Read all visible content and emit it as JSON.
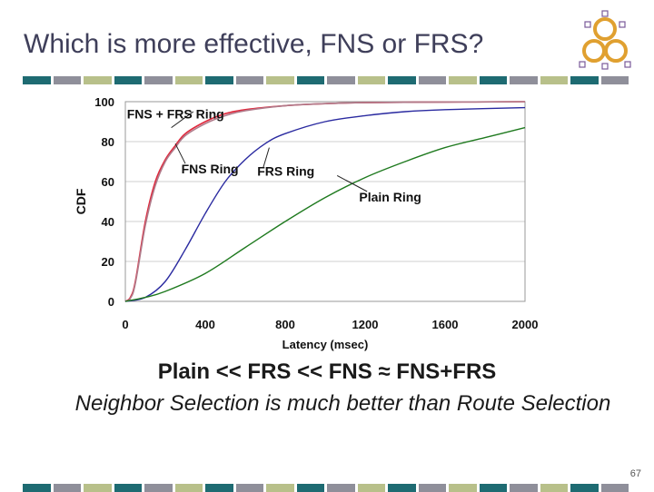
{
  "slide": {
    "title": "Which is more effective, FNS or FRS?",
    "caption_line1": "Plain << FRS << FNS ≈ FNS+FRS",
    "caption_line2": "Neighbor Selection is much better than Route Selection",
    "page_number": "67"
  },
  "decor": {
    "stripe_colors": [
      "#1e6b72",
      "#8f8f9a",
      "#b8c08a",
      "#1e6b72",
      "#8f8f9a",
      "#b8c08a",
      "#1e6b72",
      "#8f8f9a",
      "#b8c08a",
      "#1e6b72",
      "#8f8f9a",
      "#b8c08a",
      "#1e6b72",
      "#8f8f9a",
      "#b8c08a",
      "#1e6b72",
      "#8f8f9a",
      "#b8c08a",
      "#1e6b72",
      "#8f8f9a"
    ],
    "logo_icon": "network-rings-icon"
  },
  "chart_data": {
    "type": "line",
    "title": "",
    "xlabel": "Latency (msec)",
    "ylabel": "CDF",
    "xlim": [
      0,
      2000
    ],
    "ylim": [
      0,
      100
    ],
    "xticks": [
      "0",
      "400",
      "800",
      "1200",
      "1600",
      "2000"
    ],
    "yticks": [
      "0",
      "20",
      "40",
      "60",
      "80",
      "100"
    ],
    "grid": "horizontal",
    "series": [
      {
        "name": "FNS + FRS Ring",
        "color": "#e0283c",
        "x": [
          0,
          25,
          50,
          100,
          150,
          200,
          250,
          300,
          400,
          500,
          600,
          800,
          1000,
          1200,
          1600,
          2000
        ],
        "y": [
          0,
          2,
          10,
          40,
          60,
          71,
          78,
          84,
          90,
          94,
          96,
          98,
          99,
          99.5,
          99.8,
          100
        ]
      },
      {
        "name": "FNS Ring",
        "color": "#b07a8a",
        "x": [
          0,
          25,
          50,
          100,
          150,
          200,
          250,
          300,
          400,
          500,
          600,
          800,
          1000,
          1200,
          1600,
          2000
        ],
        "y": [
          0,
          1.5,
          9,
          38,
          58,
          70,
          77,
          83,
          89,
          93,
          95.5,
          98,
          99,
          99.5,
          99.8,
          100
        ]
      },
      {
        "name": "FRS Ring",
        "color": "#2a2aa0",
        "x": [
          0,
          100,
          200,
          300,
          400,
          500,
          600,
          700,
          800,
          1000,
          1200,
          1400,
          1600,
          2000
        ],
        "y": [
          0,
          2,
          10,
          26,
          44,
          60,
          71,
          79,
          84,
          90,
          93,
          95,
          96,
          97
        ]
      },
      {
        "name": "Plain Ring",
        "color": "#1f7a1f",
        "x": [
          0,
          100,
          200,
          400,
          600,
          800,
          1000,
          1200,
          1400,
          1600,
          1800,
          2000
        ],
        "y": [
          0,
          2,
          5,
          14,
          27,
          40,
          52,
          62,
          70,
          77,
          82,
          87
        ]
      }
    ],
    "annotations": [
      {
        "text": "FNS + FRS Ring",
        "series": "FNS + FRS Ring"
      },
      {
        "text": "FNS Ring",
        "series": "FNS Ring"
      },
      {
        "text": "FRS Ring",
        "series": "FRS Ring"
      },
      {
        "text": "Plain Ring",
        "series": "Plain Ring"
      }
    ]
  }
}
